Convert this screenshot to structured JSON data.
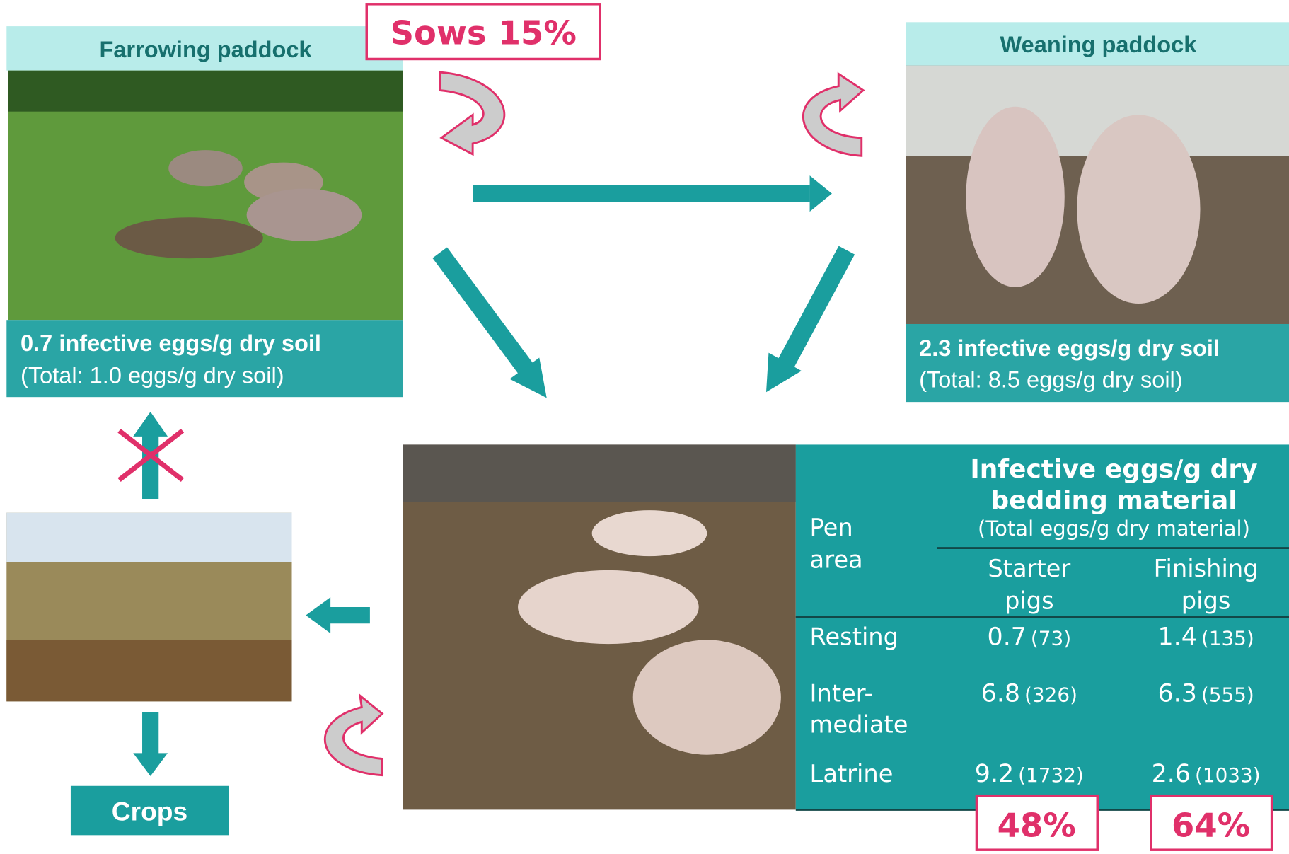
{
  "farrowing": {
    "title": "Farrowing paddock",
    "badge": "Sows 15%",
    "line1": "0.7 infective eggs/g dry soil",
    "line2": "(Total: 1.0 eggs/g dry soil)"
  },
  "weaning": {
    "title": "Weaning paddock",
    "line1": "2.3 infective eggs/g dry soil",
    "line2": "(Total: 8.5 eggs/g dry soil)"
  },
  "crops": "Crops",
  "table": {
    "header": {
      "pen_area": [
        "Pen",
        "area"
      ],
      "title": [
        "Infective eggs/g dry",
        "bedding material"
      ],
      "subtitle": "(Total eggs/g dry material)",
      "columns": [
        [
          "Starter",
          "pigs"
        ],
        [
          "Finishing",
          "pigs"
        ]
      ]
    },
    "rows": [
      {
        "area": [
          "Resting"
        ],
        "cells": [
          [
            "0.7",
            "(73)"
          ],
          [
            "1.4",
            "(135)"
          ]
        ]
      },
      {
        "area": [
          "Inter-",
          "mediate"
        ],
        "cells": [
          [
            "6.8",
            "(326)"
          ],
          [
            "6.3",
            "(555)"
          ]
        ]
      },
      {
        "area": [
          "Latrine"
        ],
        "cells": [
          [
            "9.2",
            "(1732)"
          ],
          [
            "2.6",
            "(1033)"
          ]
        ]
      }
    ],
    "footer": [
      "48%",
      "64%"
    ]
  }
}
